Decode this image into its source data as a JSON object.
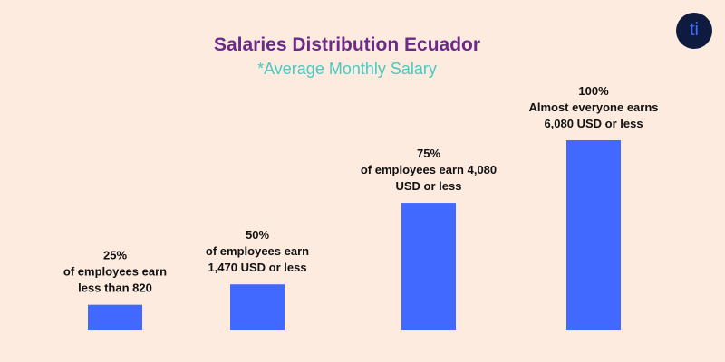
{
  "title": "Salaries Distribution Ecuador",
  "subtitle": "*Average Monthly Salary",
  "logo_text": "ti",
  "colors": {
    "background": "#fdebe0",
    "bar": "#4169ff",
    "title": "#6b2a86",
    "subtitle": "#4cc8c0",
    "logo_bg": "#0e1b3f"
  },
  "chart_data": {
    "type": "bar",
    "categories": [
      "25%",
      "50%",
      "75%",
      "100%"
    ],
    "values": [
      820,
      1470,
      4080,
      6080
    ],
    "annotations": [
      [
        "25%",
        "of employees earn",
        "less than 820"
      ],
      [
        "50%",
        "of employees earn",
        "1,470 USD or less"
      ],
      [
        "75%",
        "of employees earn 4,080",
        "USD or less"
      ],
      [
        "100%",
        "Almost everyone earns",
        "6,080 USD or less"
      ]
    ],
    "bar_color": "#4169ff",
    "grid": false,
    "axes_visible": false
  }
}
